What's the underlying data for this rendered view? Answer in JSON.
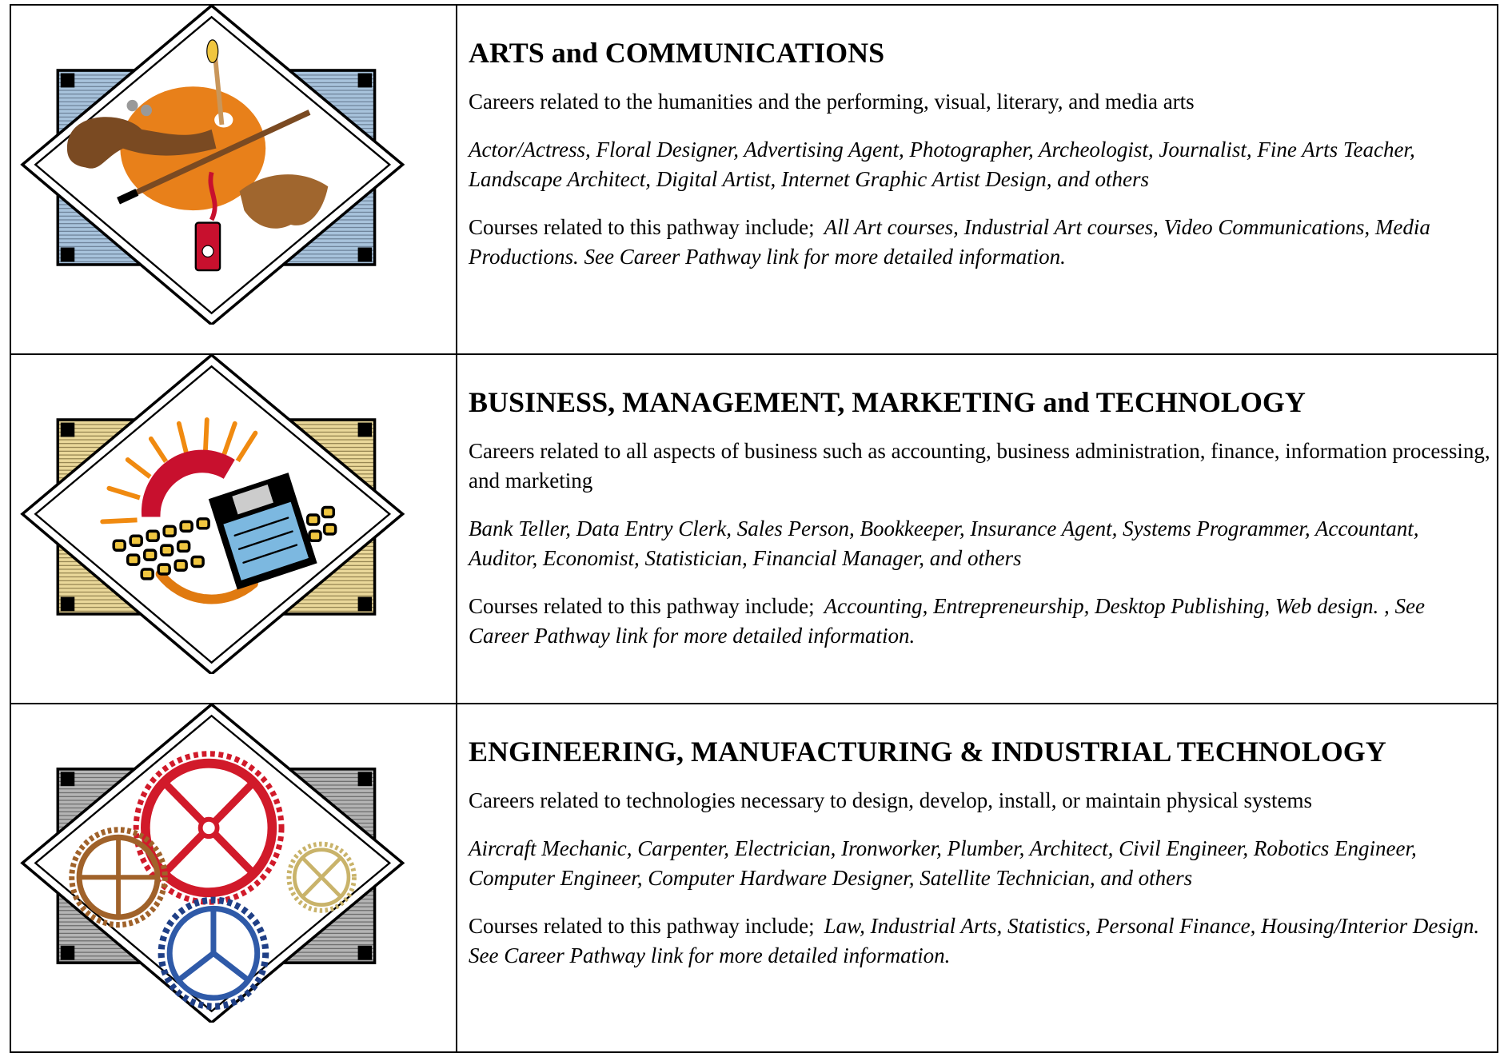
{
  "table": {
    "rows": [
      {
        "title": "ARTS and COMMUNICATIONS",
        "description": "Careers related to the humanities and the performing, visual, literary, and media arts",
        "careers": "Actor/Actress, Floral Designer, Advertising Agent, Photographer, Archeologist, Journalist, Fine Arts Teacher, Landscape Architect, Digital Artist, Internet Graphic Artist Design, and others",
        "courses_intro": "Courses related to this pathway include;",
        "courses": "All Art courses, Industrial Art courses, Video Communications, Media Productions.  See Career Pathway link for more detailed information."
      },
      {
        "title": "BUSINESS, MANAGEMENT, MARKETING and TECHNOLOGY",
        "description": "Careers related to all aspects of business such as accounting, business administration, finance, information processing, and marketing",
        "careers": "Bank Teller, Data Entry Clerk, Sales Person, Bookkeeper, Insurance Agent, Systems Programmer, Accountant, Auditor, Economist, Statistician, Financial Manager, and others",
        "courses_intro": "Courses related to this pathway include;",
        "courses": "Accounting, Entrepreneurship, Desktop Publishing, Web design. , See Career Pathway link for more detailed information."
      },
      {
        "title": "ENGINEERING, MANUFACTURING & INDUSTRIAL TECHNOLOGY",
        "description": "Careers related to technologies necessary to design, develop, install, or maintain physical systems",
        "careers": "Aircraft Mechanic, Carpenter, Electrician, Ironworker, Plumber, Architect, Civil Engineer, Robotics Engineer, Computer Engineer, Computer Hardware Designer, Satellite Technician, and others",
        "courses_intro": "Courses related to this pathway include;",
        "courses": "Law, Industrial Arts, Statistics, Personal Finance, Housing/Interior Design.  See Career Pathway link for more detailed information."
      }
    ]
  }
}
